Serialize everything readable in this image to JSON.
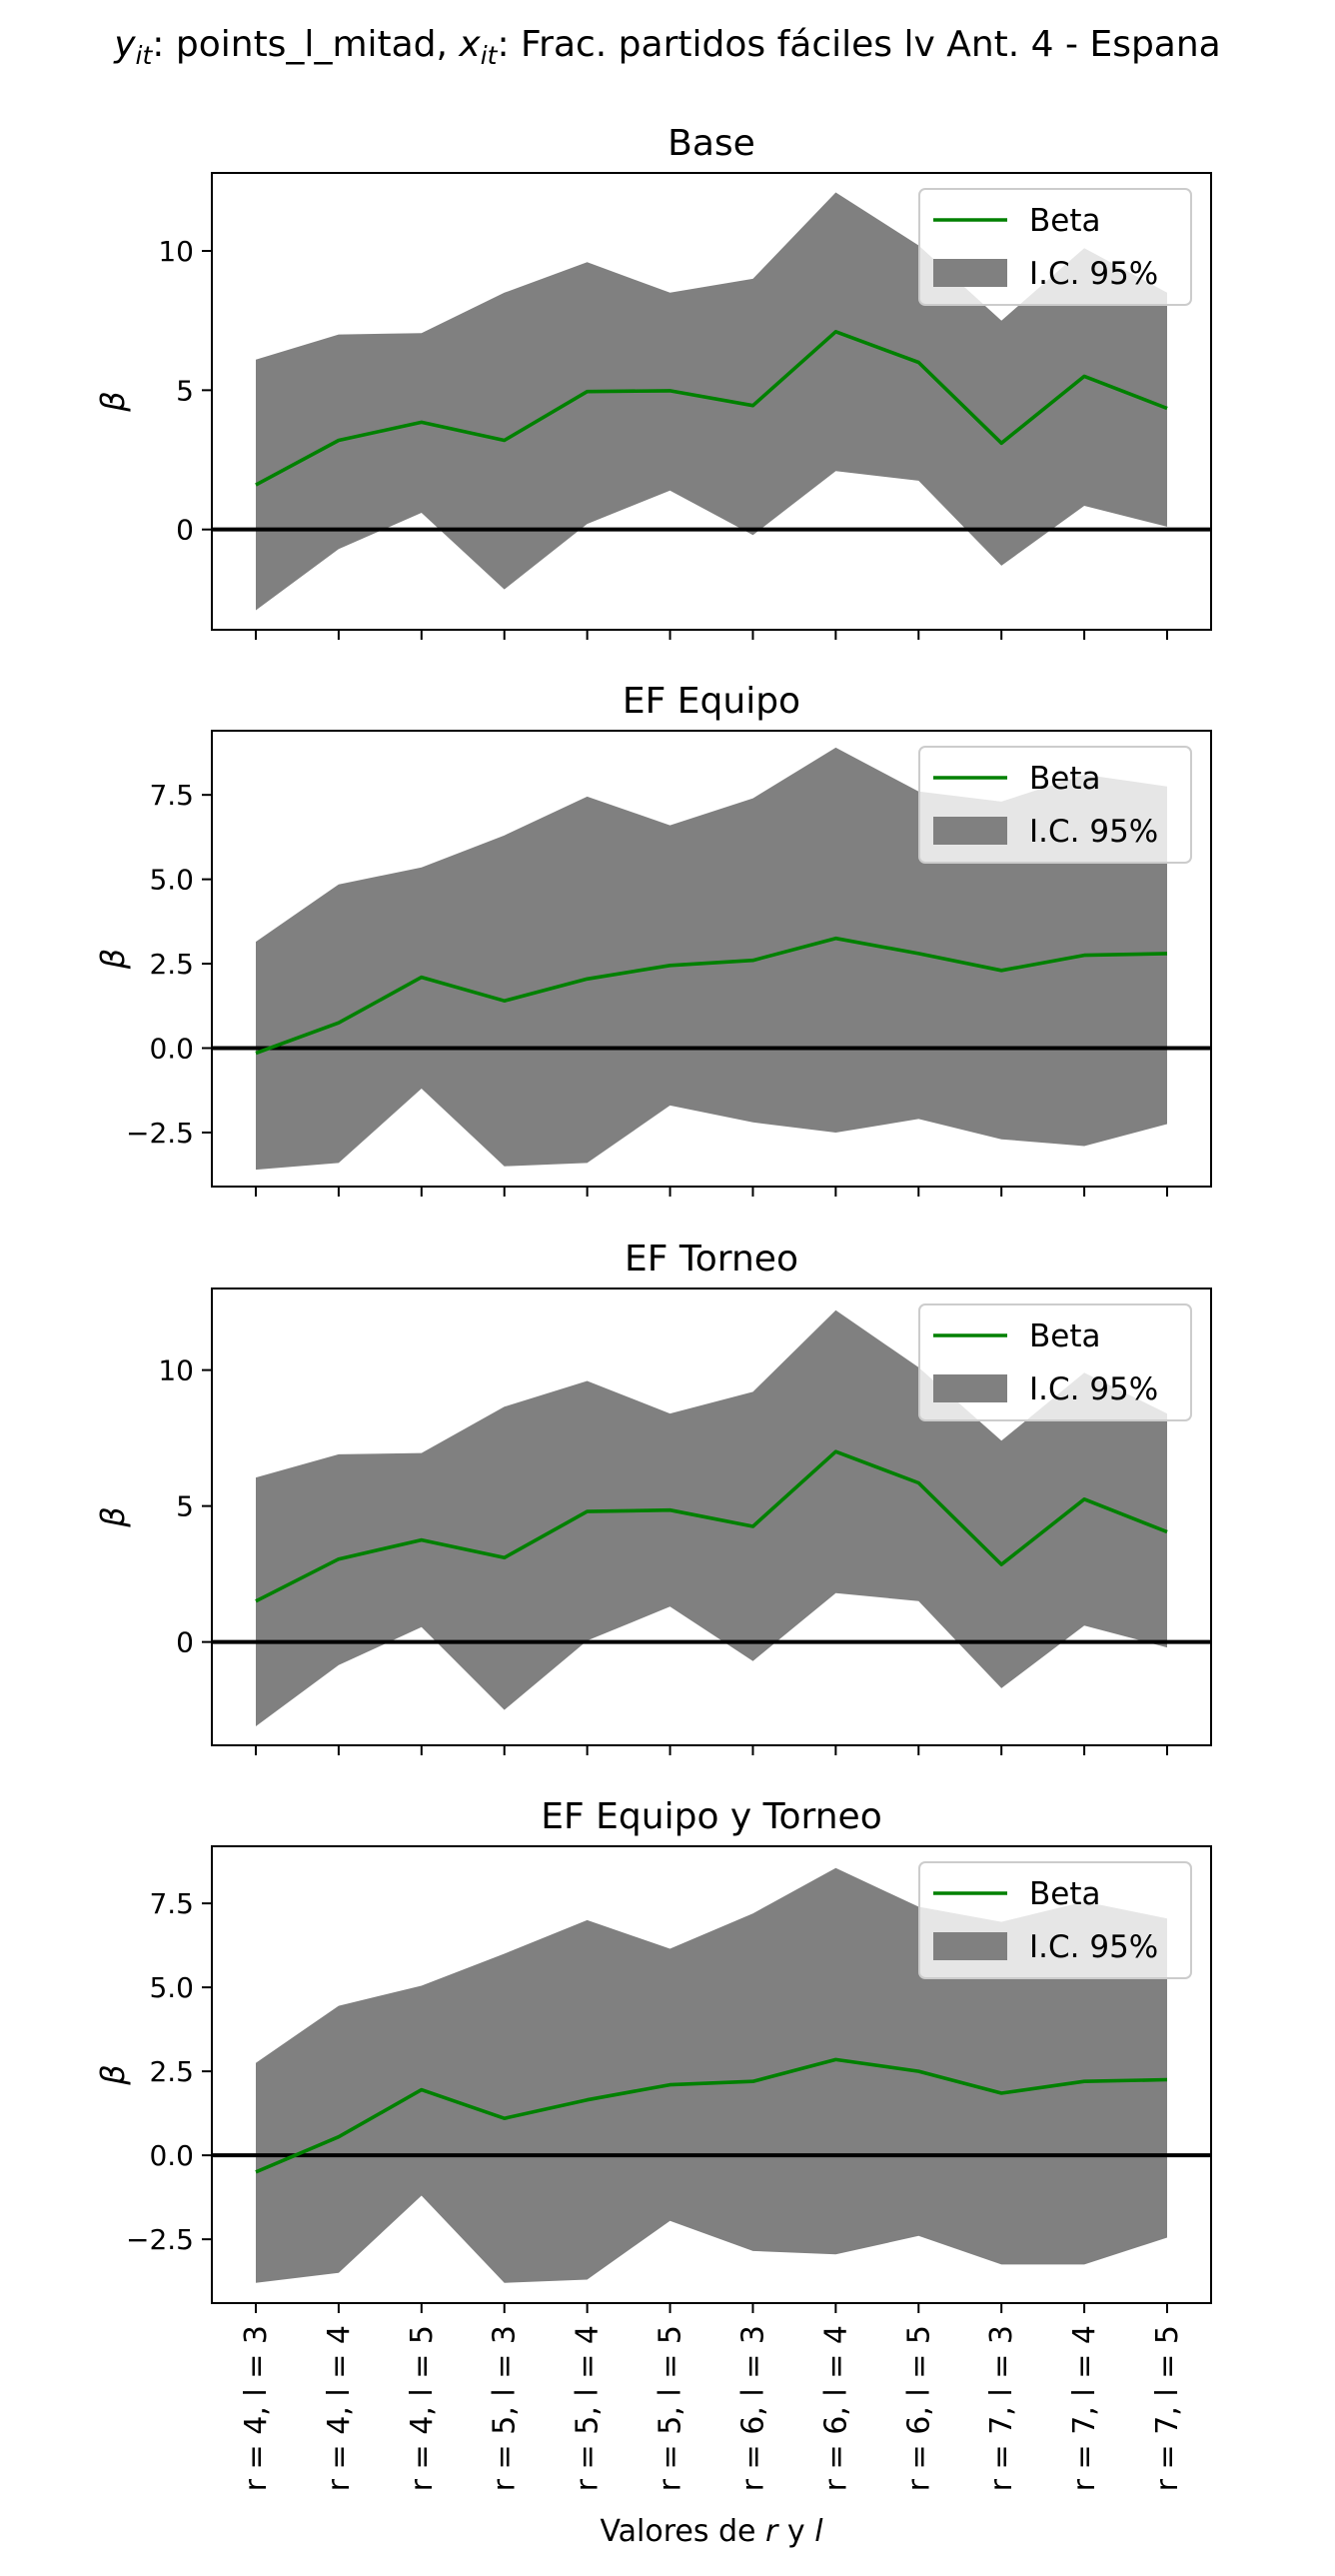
{
  "figure": {
    "suptitle_parts": {
      "y_sym": "y",
      "y_sub": "it",
      "mid": ": points_l_mitad, ",
      "x_sym": "x",
      "x_sub": "it",
      "end": ": Frac. partidos fáciles lv Ant. 4 - Espana"
    },
    "xlabel_parts": {
      "pre": "Valores de ",
      "r": "r",
      "mid": " y ",
      "l": "l"
    }
  },
  "colors": {
    "beta_line": "#008000",
    "ci_fill": "#808080",
    "zero_line": "#000000",
    "axes_frame": "#000000"
  },
  "chart_data": [
    {
      "type": "line",
      "title": "Base",
      "ylabel": "β",
      "ylim": [
        -3.6,
        12.8
      ],
      "yticks": [
        0,
        5,
        10
      ],
      "ytick_labels": [
        "0",
        "5",
        "10"
      ],
      "categories": [
        "r = 4, l = 3",
        "r = 4, l = 4",
        "r = 4, l = 5",
        "r = 5, l = 3",
        "r = 5, l = 4",
        "r = 5, l = 5",
        "r = 6, l = 3",
        "r = 6, l = 4",
        "r = 6, l = 5",
        "r = 7, l = 3",
        "r = 7, l = 4",
        "r = 7, l = 5"
      ],
      "series": [
        {
          "name": "Beta",
          "values": [
            1.6,
            3.2,
            3.85,
            3.2,
            4.95,
            4.98,
            4.45,
            7.1,
            6.0,
            3.1,
            5.5,
            4.35
          ]
        },
        {
          "name": "I.C. 95%",
          "lower": [
            -2.9,
            -0.7,
            0.6,
            -2.15,
            0.2,
            1.4,
            -0.2,
            2.1,
            1.75,
            -1.3,
            0.85,
            0.1
          ],
          "upper": [
            6.1,
            7.0,
            7.05,
            8.5,
            9.6,
            8.5,
            9.0,
            12.1,
            10.2,
            7.5,
            10.1,
            8.5
          ]
        }
      ],
      "hline": 0,
      "legend": {
        "location": "top-right",
        "entries": [
          "Beta",
          "I.C. 95%"
        ]
      },
      "grid": false
    },
    {
      "type": "line",
      "title": "EF Equipo",
      "ylabel": "β",
      "ylim": [
        -4.1,
        9.4
      ],
      "yticks": [
        -2.5,
        0.0,
        2.5,
        5.0,
        7.5
      ],
      "ytick_labels": [
        "−2.5",
        "0.0",
        "2.5",
        "5.0",
        "7.5"
      ],
      "categories": [
        "r = 4, l = 3",
        "r = 4, l = 4",
        "r = 4, l = 5",
        "r = 5, l = 3",
        "r = 5, l = 4",
        "r = 5, l = 5",
        "r = 6, l = 3",
        "r = 6, l = 4",
        "r = 6, l = 5",
        "r = 7, l = 3",
        "r = 7, l = 4",
        "r = 7, l = 5"
      ],
      "series": [
        {
          "name": "Beta",
          "values": [
            -0.15,
            0.75,
            2.1,
            1.4,
            2.05,
            2.45,
            2.6,
            3.25,
            2.8,
            2.3,
            2.75,
            2.8
          ]
        },
        {
          "name": "I.C. 95%",
          "lower": [
            -3.6,
            -3.4,
            -1.2,
            -3.5,
            -3.4,
            -1.7,
            -2.2,
            -2.5,
            -2.1,
            -2.7,
            -2.9,
            -2.25
          ],
          "upper": [
            3.15,
            4.85,
            5.35,
            6.3,
            7.45,
            6.6,
            7.4,
            8.9,
            7.6,
            7.3,
            8.1,
            7.75
          ]
        }
      ],
      "hline": 0,
      "legend": {
        "location": "top-right",
        "entries": [
          "Beta",
          "I.C. 95%"
        ]
      },
      "grid": false
    },
    {
      "type": "line",
      "title": "EF Torneo",
      "ylabel": "β",
      "ylim": [
        -3.8,
        13.0
      ],
      "yticks": [
        0,
        5,
        10
      ],
      "ytick_labels": [
        "0",
        "5",
        "10"
      ],
      "categories": [
        "r = 4, l = 3",
        "r = 4, l = 4",
        "r = 4, l = 5",
        "r = 5, l = 3",
        "r = 5, l = 4",
        "r = 5, l = 5",
        "r = 6, l = 3",
        "r = 6, l = 4",
        "r = 6, l = 5",
        "r = 7, l = 3",
        "r = 7, l = 4",
        "r = 7, l = 5"
      ],
      "series": [
        {
          "name": "Beta",
          "values": [
            1.5,
            3.05,
            3.75,
            3.1,
            4.8,
            4.85,
            4.25,
            7.0,
            5.85,
            2.85,
            5.25,
            4.05
          ]
        },
        {
          "name": "I.C. 95%",
          "lower": [
            -3.1,
            -0.85,
            0.55,
            -2.5,
            0.05,
            1.3,
            -0.7,
            1.8,
            1.5,
            -1.7,
            0.6,
            -0.2
          ],
          "upper": [
            6.05,
            6.9,
            6.95,
            8.65,
            9.6,
            8.4,
            9.2,
            12.2,
            10.1,
            7.4,
            9.9,
            8.4
          ]
        }
      ],
      "hline": 0,
      "legend": {
        "location": "top-right",
        "entries": [
          "Beta",
          "I.C. 95%"
        ]
      },
      "grid": false
    },
    {
      "type": "line",
      "title": "EF Equipo y Torneo",
      "ylabel": "β",
      "ylim": [
        -4.4,
        9.2
      ],
      "yticks": [
        -2.5,
        0.0,
        2.5,
        5.0,
        7.5
      ],
      "ytick_labels": [
        "−2.5",
        "0.0",
        "2.5",
        "5.0",
        "7.5"
      ],
      "categories": [
        "r = 4, l = 3",
        "r = 4, l = 4",
        "r = 4, l = 5",
        "r = 5, l = 3",
        "r = 5, l = 4",
        "r = 5, l = 5",
        "r = 6, l = 3",
        "r = 6, l = 4",
        "r = 6, l = 5",
        "r = 7, l = 3",
        "r = 7, l = 4",
        "r = 7, l = 5"
      ],
      "series": [
        {
          "name": "Beta",
          "values": [
            -0.5,
            0.55,
            1.95,
            1.1,
            1.65,
            2.1,
            2.2,
            2.85,
            2.5,
            1.85,
            2.2,
            2.25
          ]
        },
        {
          "name": "I.C. 95%",
          "lower": [
            -3.8,
            -3.5,
            -1.2,
            -3.8,
            -3.7,
            -1.95,
            -2.85,
            -2.95,
            -2.4,
            -3.25,
            -3.25,
            -2.45
          ],
          "upper": [
            2.75,
            4.45,
            5.05,
            6.0,
            7.0,
            6.15,
            7.2,
            8.55,
            7.4,
            6.95,
            7.55,
            7.05
          ]
        }
      ],
      "hline": 0,
      "legend": {
        "location": "top-right",
        "entries": [
          "Beta",
          "I.C. 95%"
        ]
      },
      "grid": false
    }
  ]
}
